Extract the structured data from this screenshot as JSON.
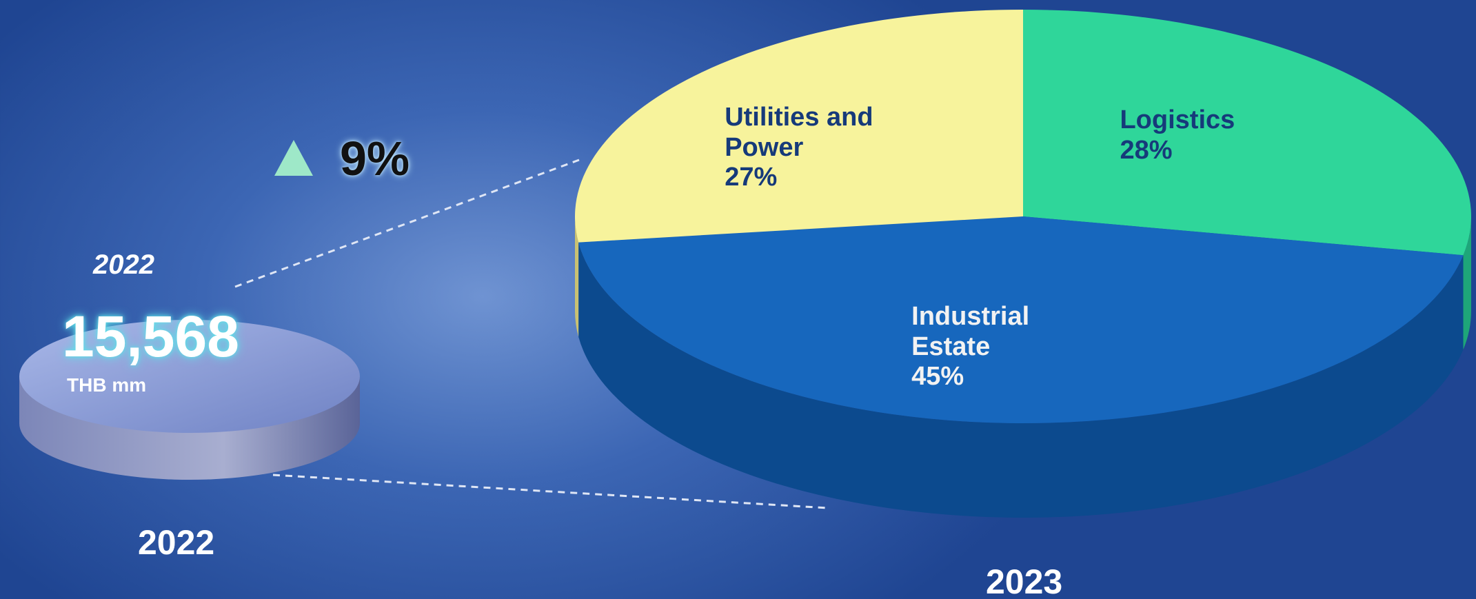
{
  "chart_data": {
    "type": "pie",
    "title": "2023",
    "categories": [
      "Logistics",
      "Industrial Estate",
      "Utilities and Power"
    ],
    "values": [
      28,
      45,
      27
    ],
    "value_labels": [
      "28%",
      "45%",
      "27%"
    ],
    "colors": [
      "#2fd69a",
      "#1767bd",
      "#f7f39c"
    ],
    "side_colors": [
      "#1ea679",
      "#0c4a8e",
      "#c9c172"
    ],
    "previous_year": "2022",
    "previous_year_label": "2022",
    "previous_total": {
      "value": 15568,
      "label": "15,568"
    },
    "unit": "THB mm",
    "growth": {
      "value": 9,
      "label": "9%"
    }
  }
}
